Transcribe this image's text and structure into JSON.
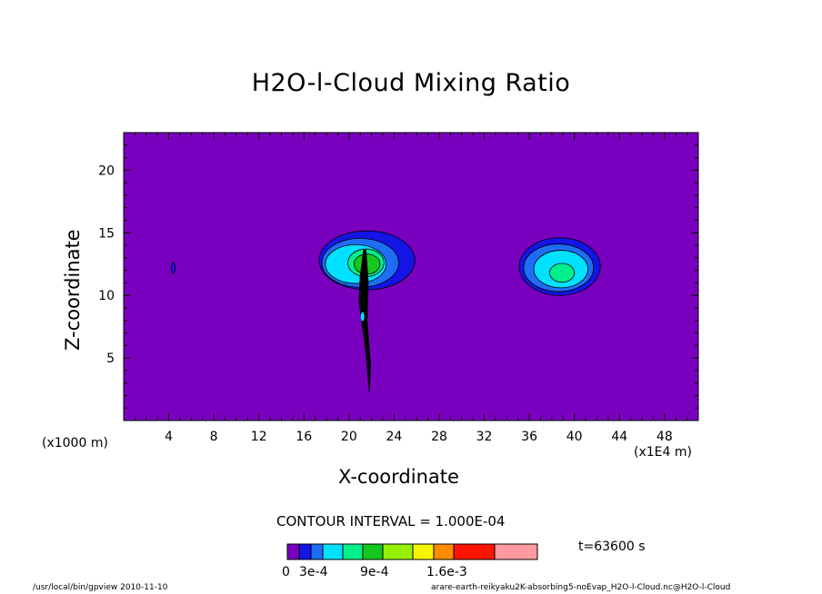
{
  "chart_data": {
    "type": "heatmap",
    "title": "H2O-l-Cloud Mixing Ratio",
    "xlabel": "X-coordinate",
    "ylabel": "Z-coordinate",
    "x_unit_label": "(x1E4 m)",
    "y_unit_label": "(x1000 m)",
    "x_ticks": [
      "4",
      "8",
      "12",
      "16",
      "20",
      "24",
      "28",
      "32",
      "36",
      "40",
      "44",
      "48"
    ],
    "y_ticks": [
      "5",
      "10",
      "15",
      "20"
    ],
    "xlim": [
      0,
      51
    ],
    "ylim": [
      0,
      23
    ],
    "contour_interval_text": "CONTOUR INTERVAL = 1.000E-04",
    "time_text": "t=63600 s",
    "colorbar": {
      "labels": [
        "0",
        "3e-4",
        "9e-4",
        "1.6e-3"
      ],
      "colors": [
        "#7a00bf",
        "#1414e6",
        "#1e6ef5",
        "#00e0ff",
        "#00f08c",
        "#14c81e",
        "#96f000",
        "#f5f500",
        "#ff8c00",
        "#ff1400",
        "#ff9aa0"
      ]
    },
    "features": [
      {
        "name": "cloud-west",
        "center_x": 21.3,
        "center_z": 12.7,
        "max_level": "green (~6e-4)"
      },
      {
        "name": "cloud-east",
        "center_x": 38.8,
        "center_z": 12.2,
        "max_level": "green (~4e-4)"
      },
      {
        "name": "small-contour",
        "center_x": 4.4,
        "center_z": 12.2,
        "max_level": "~1e-4"
      },
      {
        "name": "stalk",
        "x_range": [
          20.8,
          21.9
        ],
        "z_range": [
          2.2,
          13.6
        ]
      }
    ]
  },
  "footer": {
    "left": "/usr/local/bin/gpview  2010-11-10",
    "right": "arare-earth-reikyaku2K-absorbing5-noEvap_H2O-l-Cloud.nc@H2O-l-Cloud"
  }
}
